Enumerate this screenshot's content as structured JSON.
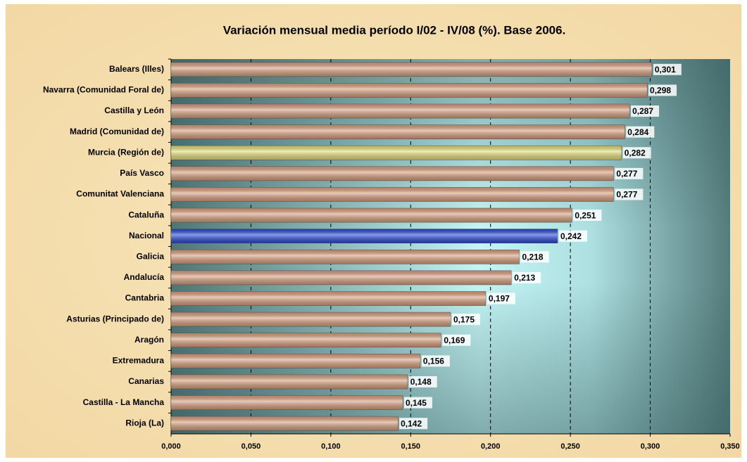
{
  "chart_data": {
    "type": "hbar",
    "title": "Variación mensual media período I/02 - IV/08 (%). Base 2006.",
    "categories": [
      "Balears (Illes)",
      "Navarra (Comunidad Foral de)",
      "Castilla y León",
      "Madrid (Comunidad de)",
      "Murcia (Región de)",
      "País Vasco",
      "Comunitat Valenciana",
      "Cataluña",
      "Nacional",
      "Galicia",
      "Andalucía",
      "Cantabria",
      "Asturias (Principado de)",
      "Aragón",
      "Extremadura",
      "Canarias",
      "Castilla - La Mancha",
      "Rioja (La)"
    ],
    "values": [
      0.301,
      0.298,
      0.287,
      0.284,
      0.282,
      0.277,
      0.277,
      0.251,
      0.242,
      0.218,
      0.213,
      0.197,
      0.175,
      0.169,
      0.156,
      0.148,
      0.145,
      0.142
    ],
    "value_labels": [
      "0,301",
      "0,298",
      "0,287",
      "0,284",
      "0,282",
      "0,277",
      "0,277",
      "0,251",
      "0,242",
      "0,218",
      "0,213",
      "0,197",
      "0,175",
      "0,169",
      "0,156",
      "0,148",
      "0,145",
      "0,142"
    ],
    "colors": [
      "#d9a07e",
      "#d9a07e",
      "#d9a07e",
      "#d9a07e",
      "#e6e07a",
      "#d9a07e",
      "#d9a07e",
      "#d9a07e",
      "#2848d8",
      "#d9a07e",
      "#d9a07e",
      "#d9a07e",
      "#d9a07e",
      "#d9a07e",
      "#d9a07e",
      "#d9a07e",
      "#d9a07e",
      "#d9a07e"
    ],
    "xlim": [
      0,
      0.35
    ],
    "xticks": [
      {
        "value": 0,
        "label": "0,000"
      },
      {
        "value": 0.05,
        "label": "0,050"
      },
      {
        "value": 0.1,
        "label": "0,100"
      },
      {
        "value": 0.15,
        "label": "0,150"
      },
      {
        "value": 0.2,
        "label": "0,200"
      },
      {
        "value": 0.25,
        "label": "0,250"
      },
      {
        "value": 0.3,
        "label": "0,300"
      },
      {
        "value": 0.35,
        "label": "0,350"
      }
    ],
    "grid": true
  }
}
